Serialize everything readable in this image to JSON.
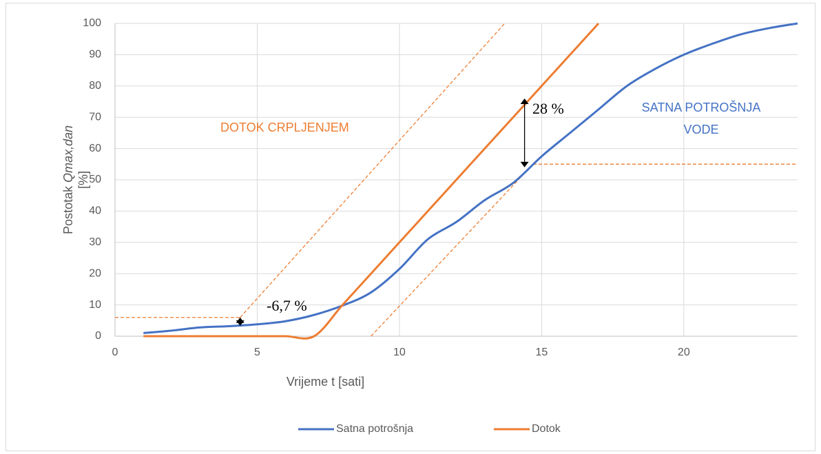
{
  "chart_data": {
    "type": "line",
    "xlabel": "Vrijeme t [sati]",
    "ylabel": [
      "Postotak ",
      "Qmax,dan",
      "[%]"
    ],
    "x": [
      1,
      2,
      3,
      4,
      5,
      6,
      7,
      8,
      9,
      10,
      11,
      12,
      13,
      14,
      15,
      16,
      17,
      18,
      19,
      20,
      21,
      22,
      23,
      24
    ],
    "series": [
      {
        "name": "Satna potrošnja",
        "color": "#4472c4",
        "values": [
          1,
          1.8,
          2.8,
          3.2,
          3.8,
          4.8,
          6.8,
          9.8,
          14,
          21.5,
          31,
          36.5,
          43.5,
          49,
          57.5,
          65,
          72.5,
          80,
          85.5,
          90,
          93.5,
          96.5,
          98.5,
          100
        ]
      },
      {
        "name": "Dotok",
        "color": "#ed7d31",
        "values": [
          0,
          0,
          0,
          0,
          0,
          0,
          0,
          10,
          20,
          30,
          40,
          50,
          60,
          70,
          80,
          90,
          100,
          null,
          null,
          null,
          null,
          null,
          null,
          null
        ]
      }
    ],
    "guide_lines": [
      {
        "x": [
          0,
          4.4
        ],
        "y": [
          6,
          6
        ]
      },
      {
        "x": [
          4.4,
          13.7
        ],
        "y": [
          6,
          100
        ]
      },
      {
        "x": [
          9,
          14.7
        ],
        "y": [
          0,
          55
        ]
      },
      {
        "x": [
          14.7,
          24
        ],
        "y": [
          55,
          55
        ]
      }
    ],
    "arrows": [
      {
        "x": 4.4,
        "y": [
          3.3,
          6
        ]
      },
      {
        "x": 14.4,
        "y": [
          54,
          76
        ]
      }
    ],
    "annotations": [
      "-6,7 %",
      "28 %",
      "DOTOK CRPLJENJEM",
      "SATNA POTROŠNJA",
      "VODE"
    ],
    "xlim": [
      0,
      24
    ],
    "xticks": [
      0,
      5,
      10,
      15,
      20
    ],
    "ylim": [
      0,
      100
    ],
    "yticks": [
      0,
      10,
      20,
      30,
      40,
      50,
      60,
      70,
      80,
      90,
      100
    ],
    "grid": true,
    "legend": "bottom"
  }
}
